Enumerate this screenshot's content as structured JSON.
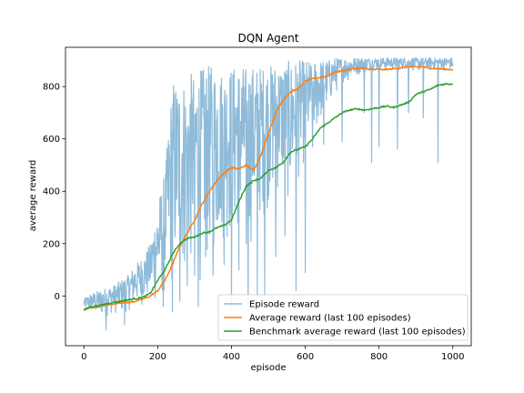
{
  "chart_data": {
    "type": "line",
    "title": "DQN Agent",
    "xlabel": "episode",
    "ylabel": "average reward",
    "xlim": [
      -50,
      1050
    ],
    "ylim": [
      -190,
      950
    ],
    "xticks": [
      0,
      200,
      400,
      600,
      800,
      1000
    ],
    "yticks": [
      0,
      200,
      400,
      600,
      800
    ],
    "grid": false,
    "legend_position": "lower-right",
    "colors": {
      "episode": "#1f77b4",
      "average": "#ff7f0e",
      "benchmark": "#2ca02c"
    },
    "series": [
      {
        "name": "Episode reward",
        "key": "episode",
        "alpha": 0.5,
        "x": [
          0,
          20,
          40,
          60,
          80,
          100,
          120,
          140,
          160,
          180,
          200,
          220,
          240,
          260,
          280,
          300,
          320,
          340,
          360,
          380,
          400,
          420,
          440,
          460,
          480,
          500,
          520,
          540,
          560,
          580,
          600,
          620,
          640,
          660,
          680,
          700,
          720,
          740,
          760,
          780,
          800,
          820,
          840,
          860,
          880,
          900,
          920,
          940,
          960,
          980,
          1000
        ],
        "y_low": [
          -60,
          -70,
          -90,
          -80,
          -70,
          -80,
          -60,
          -50,
          -40,
          -30,
          -60,
          -40,
          -20,
          0,
          20,
          60,
          20,
          100,
          120,
          180,
          150,
          200,
          140,
          190,
          260,
          320,
          350,
          380,
          300,
          420,
          500,
          560,
          640,
          700,
          760,
          800,
          820,
          840,
          850,
          860,
          860,
          860,
          860,
          860,
          870,
          850,
          860,
          860,
          860,
          860,
          860
        ],
        "y_high": [
          -10,
          10,
          20,
          30,
          40,
          60,
          80,
          120,
          150,
          200,
          350,
          480,
          830,
          820,
          840,
          860,
          870,
          880,
          880,
          860,
          880,
          880,
          880,
          880,
          880,
          880,
          890,
          890,
          900,
          900,
          900,
          900,
          900,
          900,
          910,
          910,
          910,
          910,
          910,
          910,
          910,
          910,
          910,
          910,
          910,
          910,
          910,
          910,
          910,
          910,
          910
        ],
        "dips": [
          [
            60,
            -130
          ],
          [
            110,
            -110
          ],
          [
            215,
            -40
          ],
          [
            240,
            -60
          ],
          [
            260,
            -20
          ],
          [
            280,
            40
          ],
          [
            300,
            80
          ],
          [
            310,
            -40
          ],
          [
            330,
            150
          ],
          [
            350,
            80
          ],
          [
            380,
            120
          ],
          [
            400,
            -50
          ],
          [
            420,
            100
          ],
          [
            440,
            200
          ],
          [
            445,
            -60
          ],
          [
            470,
            0
          ],
          [
            490,
            0
          ],
          [
            520,
            150
          ],
          [
            545,
            230
          ],
          [
            575,
            20
          ],
          [
            600,
            90
          ],
          [
            620,
            570
          ],
          [
            650,
            580
          ],
          [
            700,
            590
          ],
          [
            760,
            700
          ],
          [
            780,
            510
          ],
          [
            800,
            570
          ],
          [
            850,
            560
          ],
          [
            880,
            700
          ],
          [
            920,
            680
          ],
          [
            960,
            510
          ]
        ]
      },
      {
        "name": "Average reward (last 100 episodes)",
        "key": "average",
        "x": [
          0,
          20,
          40,
          60,
          80,
          100,
          120,
          140,
          160,
          180,
          200,
          220,
          240,
          260,
          280,
          300,
          320,
          340,
          360,
          380,
          400,
          420,
          440,
          460,
          480,
          500,
          520,
          540,
          560,
          580,
          600,
          620,
          640,
          660,
          680,
          700,
          720,
          740,
          760,
          780,
          800,
          820,
          840,
          860,
          880,
          900,
          920,
          940,
          960,
          980,
          1000
        ],
        "y": [
          -50,
          -45,
          -40,
          -35,
          -30,
          -25,
          -25,
          -20,
          -12,
          0,
          20,
          60,
          120,
          190,
          240,
          290,
          350,
          400,
          440,
          470,
          490,
          485,
          500,
          480,
          540,
          620,
          700,
          750,
          780,
          790,
          820,
          830,
          835,
          840,
          855,
          860,
          865,
          870,
          870,
          865,
          865,
          865,
          868,
          872,
          875,
          875,
          875,
          870,
          868,
          866,
          865
        ]
      },
      {
        "name": "Benchmark average reward (last 100 episodes)",
        "key": "benchmark",
        "x": [
          0,
          20,
          40,
          60,
          80,
          100,
          120,
          140,
          160,
          180,
          200,
          220,
          240,
          260,
          280,
          300,
          320,
          340,
          360,
          380,
          400,
          420,
          440,
          460,
          480,
          500,
          520,
          540,
          560,
          580,
          600,
          620,
          640,
          660,
          680,
          700,
          720,
          740,
          760,
          780,
          800,
          820,
          840,
          860,
          880,
          900,
          920,
          940,
          960,
          980,
          1000
        ],
        "y": [
          -55,
          -40,
          -38,
          -30,
          -25,
          -20,
          -15,
          -10,
          -5,
          10,
          60,
          100,
          160,
          200,
          220,
          225,
          240,
          245,
          260,
          270,
          290,
          360,
          420,
          440,
          450,
          480,
          490,
          510,
          550,
          560,
          570,
          600,
          640,
          660,
          680,
          700,
          710,
          715,
          710,
          715,
          720,
          725,
          720,
          730,
          740,
          770,
          780,
          790,
          805,
          810,
          810
        ]
      }
    ]
  }
}
